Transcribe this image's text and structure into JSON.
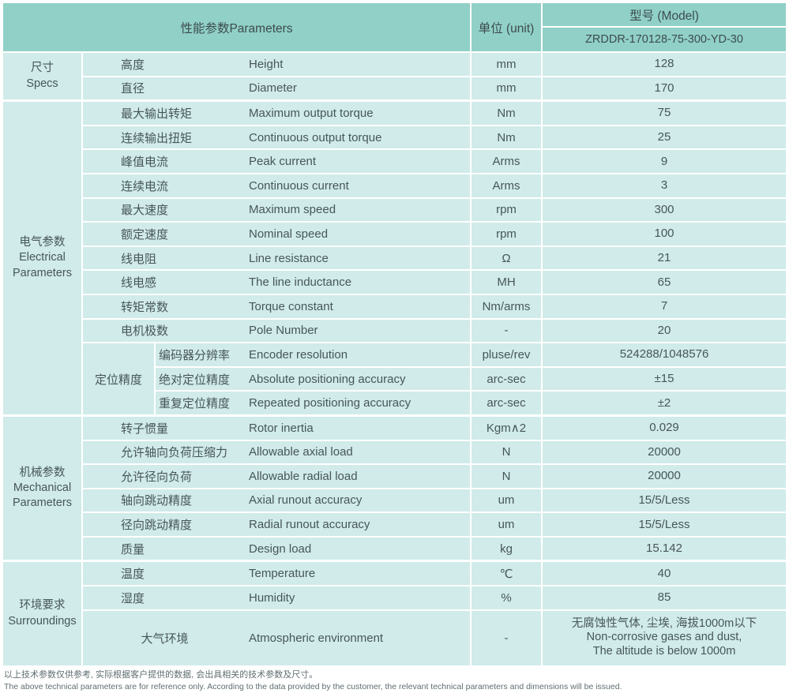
{
  "header": {
    "parameters": "性能参数Parameters",
    "unit": "单位 (unit)",
    "model_label": "型号 (Model)",
    "model_value": "ZRDDR-170128-75-300-YD-30"
  },
  "sections": [
    {
      "id": "specs",
      "label_lines": [
        "尺寸",
        "Specs"
      ],
      "rows": [
        {
          "cn": "高度",
          "en": "Height",
          "unit": "mm",
          "value": "128"
        },
        {
          "cn": "直径",
          "en": "Diameter",
          "unit": "mm",
          "value": "170"
        }
      ]
    },
    {
      "id": "electrical",
      "label_lines": [
        "电气参数",
        "Electrical",
        "Parameters"
      ],
      "rows": [
        {
          "cn": "最大输出转矩",
          "en": "Maximum output torque",
          "unit": "Nm",
          "value": "75"
        },
        {
          "cn": "连续输出扭矩",
          "en": "Continuous output torque",
          "unit": "Nm",
          "value": "25"
        },
        {
          "cn": "峰值电流",
          "en": "Peak current",
          "unit": "Arms",
          "value": "9"
        },
        {
          "cn": "连续电流",
          "en": "Continuous current",
          "unit": "Arms",
          "value": "3"
        },
        {
          "cn": "最大速度",
          "en": "Maximum speed",
          "unit": "rpm",
          "value": "300"
        },
        {
          "cn": "额定速度",
          "en": "Nominal speed",
          "unit": "rpm",
          "value": "100"
        },
        {
          "cn": "线电阻",
          "en": "Line resistance",
          "unit": "Ω",
          "value": "21"
        },
        {
          "cn": "线电感",
          "en": "The line inductance",
          "unit": "MH",
          "value": "65"
        },
        {
          "cn": "转矩常数",
          "en": "Torque constant",
          "unit": "Nm/arms",
          "value": "7"
        },
        {
          "cn": "电机极数",
          "en": "Pole Number",
          "unit": "-",
          "value": "20"
        }
      ],
      "subgroup": {
        "label": "定位精度",
        "rows": [
          {
            "cn": "编码器分辨率",
            "en": "Encoder resolution",
            "unit": "pluse/rev",
            "value": "524288/1048576"
          },
          {
            "cn": "绝对定位精度",
            "en": "Absolute positioning accuracy",
            "unit": "arc-sec",
            "value": "±15"
          },
          {
            "cn": "重复定位精度",
            "en": "Repeated positioning accuracy",
            "unit": "arc-sec",
            "value": "±2"
          }
        ]
      }
    },
    {
      "id": "mechanical",
      "label_lines": [
        "机械参数",
        "Mechanical",
        "Parameters"
      ],
      "rows": [
        {
          "cn": "转子惯量",
          "en": "Rotor inertia",
          "unit": "Kgm∧2",
          "value": "0.029"
        },
        {
          "cn": "允许轴向负荷压缩力",
          "en": "Allowable axial load",
          "unit": "N",
          "value": "20000"
        },
        {
          "cn": "允许径向负荷",
          "en": "Allowable radial load",
          "unit": "N",
          "value": "20000"
        },
        {
          "cn": "轴向跳动精度",
          "en": "Axial runout accuracy",
          "unit": "um",
          "value": "15/5/Less"
        },
        {
          "cn": "径向跳动精度",
          "en": "Radial runout accuracy",
          "unit": "um",
          "value": "15/5/Less"
        },
        {
          "cn": "质量",
          "en": "Design load",
          "unit": "kg",
          "value": "15.142"
        }
      ]
    },
    {
      "id": "surroundings",
      "label_lines": [
        "环境要求",
        "Surroundings"
      ],
      "rows": [
        {
          "cn": "温度",
          "en": "Temperature",
          "unit": "℃",
          "value": "40"
        },
        {
          "cn": "湿度",
          "en": "Humidity",
          "unit": "%",
          "value": "85"
        },
        {
          "cn": "大气环境",
          "en": "Atmospheric environment",
          "unit": "-",
          "tall": true,
          "cn_centered": true,
          "value_lines": [
            "无腐蚀性气体, 尘埃, 海拔1000m以下",
            "Non-corrosive gases and dust,",
            "The altitude is below 1000m"
          ]
        }
      ]
    }
  ],
  "footnote": {
    "cn": "以上技术参数仅供参考, 实际根据客户提供的数据, 会出具相关的技术参数及尺寸。",
    "en": "The above technical parameters are for reference only. According to the data provided by the customer, the relevant technical parameters and dimensions will be issued."
  },
  "colors": {
    "header_bg": "#90d0c7",
    "row_bg": "#d0ebe9",
    "text": "#47565a",
    "footnote_text": "#5f6e71"
  }
}
